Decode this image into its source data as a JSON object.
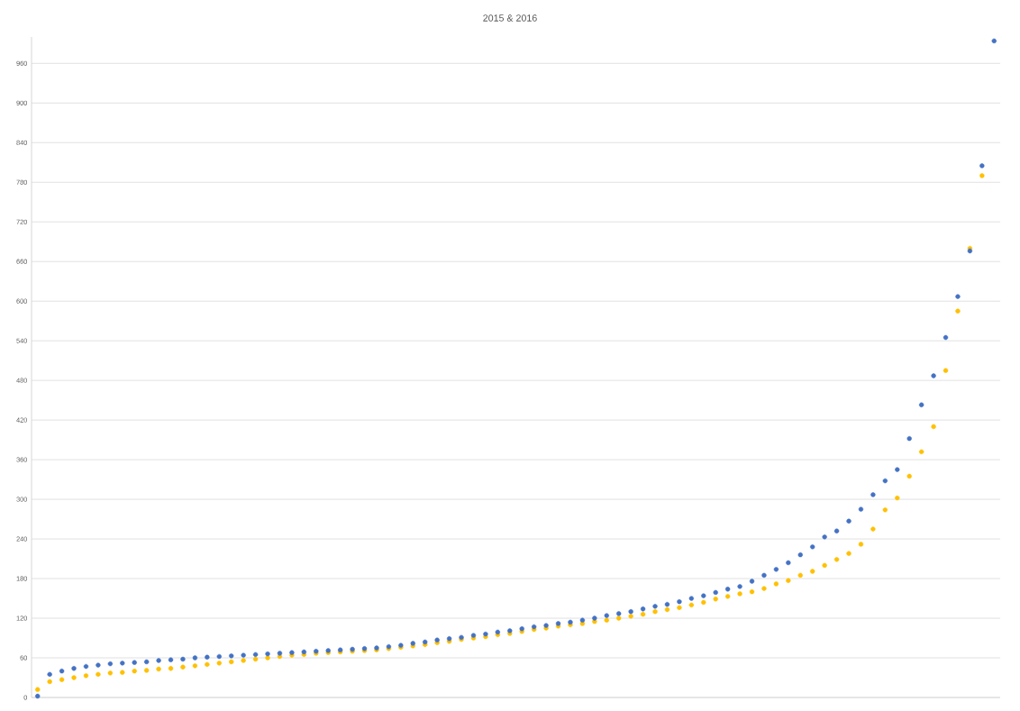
{
  "chart_data": {
    "type": "scatter",
    "title": "2015 & 2016",
    "categories": [
      null,
      null,
      null,
      null,
      null,
      null,
      null,
      null,
      null,
      null,
      null,
      null,
      null,
      null,
      null,
      null,
      null,
      null,
      null,
      null,
      null,
      null,
      null,
      null,
      null,
      null,
      null,
      null,
      null,
      null,
      null,
      null,
      null,
      null,
      null,
      null,
      null,
      null,
      null,
      null,
      null,
      null,
      null,
      null,
      null,
      null,
      null,
      null,
      null,
      null,
      null,
      null,
      null,
      null,
      null,
      null,
      null,
      null,
      null,
      null,
      null,
      null,
      null,
      null,
      null,
      null,
      null,
      null,
      null,
      null,
      null,
      null,
      null,
      null,
      null,
      null,
      null,
      null,
      null,
      null
    ],
    "series": [
      {
        "color": "#ffc000",
        "values": [
          12,
          24,
          27,
          30,
          33,
          35,
          37,
          38,
          40,
          41,
          43,
          44,
          46,
          48,
          50,
          52,
          54,
          56,
          58,
          60,
          62,
          64,
          65,
          67,
          68,
          69,
          70,
          71,
          72,
          74,
          76,
          78,
          80,
          83,
          85,
          88,
          90,
          92,
          95,
          97,
          100,
          103,
          105,
          108,
          110,
          112,
          115,
          117,
          120,
          123,
          126,
          130,
          133,
          136,
          140,
          144,
          149,
          153,
          157,
          160,
          165,
          172,
          177,
          185,
          191,
          200,
          209,
          218,
          232,
          255,
          284,
          302,
          335,
          372,
          410,
          495,
          585,
          680,
          790,
          null
        ]
      },
      {
        "color": "#4472c4",
        "values": [
          2,
          35,
          40,
          44,
          47,
          49,
          51,
          52,
          53,
          54,
          56,
          57,
          58,
          60,
          61,
          62,
          63,
          64,
          65,
          66,
          67,
          68,
          69,
          70,
          71,
          72,
          73,
          74,
          75,
          77,
          79,
          82,
          84,
          87,
          89,
          91,
          94,
          96,
          99,
          101,
          104,
          107,
          109,
          112,
          114,
          117,
          120,
          124,
          127,
          130,
          134,
          138,
          141,
          145,
          150,
          154,
          159,
          164,
          168,
          176,
          185,
          194,
          204,
          216,
          228,
          243,
          252,
          267,
          285,
          307,
          328,
          345,
          392,
          443,
          487,
          545,
          607,
          676,
          805,
          994
        ]
      }
    ],
    "ylim": [
      0,
      1000
    ],
    "yticks": [
      0,
      60,
      120,
      180,
      240,
      300,
      360,
      420,
      480,
      540,
      600,
      660,
      720,
      780,
      840,
      900,
      960
    ],
    "grid": "y",
    "tick_labels": "y"
  }
}
